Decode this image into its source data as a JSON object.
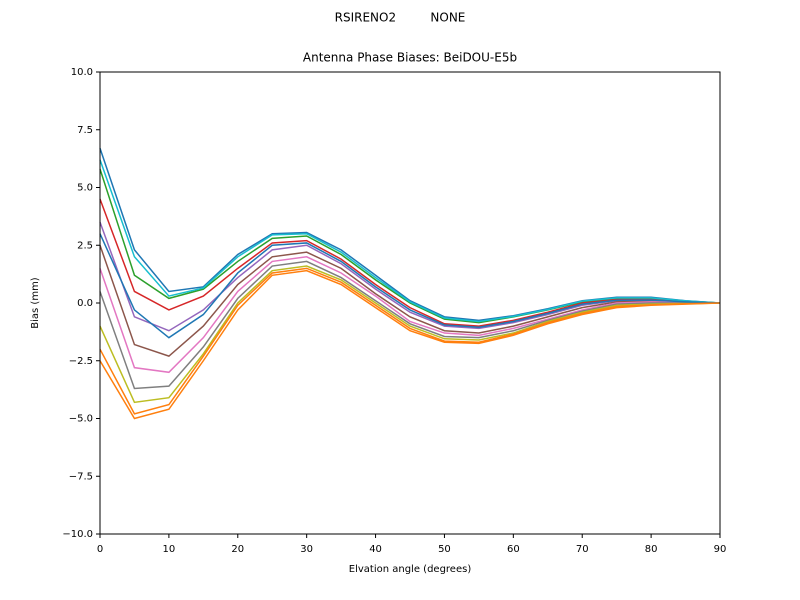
{
  "chart_data": {
    "type": "line",
    "suptitle": "RSIRENO2         NONE",
    "title": "Antenna Phase Biases: BeiDOU-E5b",
    "x_label": "Elvation angle (degrees)",
    "y_label": "Bias (mm)",
    "x": [
      0,
      5,
      10,
      15,
      20,
      25,
      30,
      35,
      40,
      45,
      50,
      55,
      60,
      65,
      70,
      75,
      80,
      85,
      90
    ],
    "xlim": [
      0,
      90
    ],
    "xticks": [
      0,
      10,
      20,
      30,
      40,
      50,
      60,
      70,
      80,
      90
    ],
    "ylim": [
      -10,
      10
    ],
    "yticks": [
      {
        "value": -10,
        "label": "−10.0"
      },
      {
        "value": -7.5,
        "label": "−7.5"
      },
      {
        "value": -5,
        "label": "−5.0"
      },
      {
        "value": -2.5,
        "label": "−2.5"
      },
      {
        "value": 0,
        "label": "0.0"
      },
      {
        "value": 2.5,
        "label": "2.5"
      },
      {
        "value": 5,
        "label": "5.0"
      },
      {
        "value": 7.5,
        "label": "7.5"
      },
      {
        "value": 10,
        "label": "10.0"
      }
    ],
    "grid": false,
    "series": [
      {
        "color": "#1f77b4",
        "values": [
          6.7,
          2.3,
          0.5,
          0.7,
          2.1,
          3.0,
          3.05,
          2.3,
          1.2,
          0.1,
          -0.6,
          -0.75,
          -0.55,
          -0.25,
          0.1,
          0.25,
          0.25,
          0.1,
          0
        ]
      },
      {
        "color": "#ff7f0e",
        "values": [
          -2.5,
          -5.0,
          -4.6,
          -2.5,
          -0.3,
          1.2,
          1.4,
          0.8,
          -0.2,
          -1.2,
          -1.7,
          -1.75,
          -1.4,
          -0.9,
          -0.5,
          -0.2,
          -0.1,
          -0.05,
          0
        ]
      },
      {
        "color": "#2ca02c",
        "values": [
          5.8,
          1.2,
          0.2,
          0.6,
          1.8,
          2.8,
          2.9,
          2.1,
          1.0,
          0.0,
          -0.7,
          -0.85,
          -0.6,
          -0.3,
          0.05,
          0.2,
          0.2,
          0.08,
          0
        ]
      },
      {
        "color": "#d62728",
        "values": [
          4.5,
          0.5,
          -0.3,
          0.3,
          1.5,
          2.6,
          2.7,
          1.9,
          0.8,
          -0.2,
          -0.9,
          -1.0,
          -0.75,
          -0.4,
          0.0,
          0.15,
          0.15,
          0.05,
          0
        ]
      },
      {
        "color": "#9467bd",
        "values": [
          3.5,
          -0.6,
          -1.2,
          -0.3,
          1.1,
          2.3,
          2.5,
          1.7,
          0.6,
          -0.4,
          -1.0,
          -1.1,
          -0.85,
          -0.5,
          -0.1,
          0.1,
          0.12,
          0.04,
          0
        ]
      },
      {
        "color": "#8c564b",
        "values": [
          2.5,
          -1.8,
          -2.3,
          -1.0,
          0.8,
          2.0,
          2.2,
          1.5,
          0.4,
          -0.6,
          -1.2,
          -1.3,
          -1.0,
          -0.6,
          -0.2,
          0.05,
          0.08,
          0.03,
          0
        ]
      },
      {
        "color": "#e377c2",
        "values": [
          1.5,
          -2.8,
          -3.0,
          -1.5,
          0.5,
          1.8,
          2.0,
          1.3,
          0.3,
          -0.8,
          -1.3,
          -1.4,
          -1.1,
          -0.7,
          -0.3,
          0.0,
          0.05,
          0.02,
          0
        ]
      },
      {
        "color": "#7f7f7f",
        "values": [
          0.5,
          -3.7,
          -3.6,
          -1.9,
          0.2,
          1.6,
          1.8,
          1.1,
          0.1,
          -0.9,
          -1.45,
          -1.5,
          -1.2,
          -0.75,
          -0.35,
          -0.05,
          0.0,
          0.0,
          0
        ]
      },
      {
        "color": "#bcbd22",
        "values": [
          -1.0,
          -4.3,
          -4.1,
          -2.2,
          0.0,
          1.4,
          1.6,
          1.0,
          0.0,
          -1.0,
          -1.55,
          -1.6,
          -1.3,
          -0.8,
          -0.4,
          -0.1,
          -0.05,
          -0.02,
          0
        ]
      },
      {
        "color": "#17becf",
        "values": [
          6.2,
          2.0,
          0.3,
          0.65,
          2.0,
          2.95,
          3.0,
          2.2,
          1.1,
          0.05,
          -0.65,
          -0.8,
          -0.58,
          -0.28,
          0.08,
          0.22,
          0.22,
          0.09,
          0
        ]
      },
      {
        "color": "#1f77b4",
        "values": [
          3.0,
          -0.3,
          -1.5,
          -0.5,
          1.3,
          2.5,
          2.6,
          1.8,
          0.7,
          -0.3,
          -0.95,
          -1.05,
          -0.8,
          -0.45,
          -0.05,
          0.12,
          0.13,
          0.05,
          0
        ]
      },
      {
        "color": "#ff7f0e",
        "values": [
          -2.0,
          -4.8,
          -4.4,
          -2.3,
          -0.1,
          1.3,
          1.5,
          0.9,
          -0.1,
          -1.1,
          -1.65,
          -1.7,
          -1.35,
          -0.85,
          -0.45,
          -0.15,
          -0.08,
          -0.03,
          0
        ]
      }
    ]
  }
}
